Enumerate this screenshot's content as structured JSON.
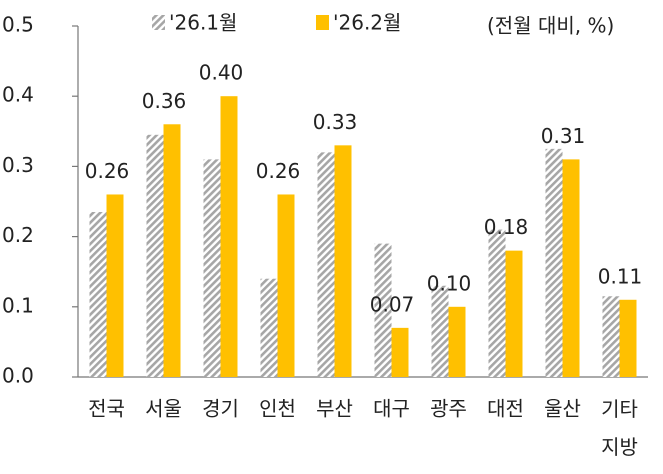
{
  "chart_data": {
    "type": "bar",
    "annotation": "(전월 대비, %)",
    "categories": [
      "전국",
      "서울",
      "경기",
      "인천",
      "부산",
      "대구",
      "광주",
      "대전",
      "울산",
      "기타 지방"
    ],
    "series": [
      {
        "name": "'26.1월",
        "color": "#a6a6a6",
        "hatch": true,
        "values": [
          0.235,
          0.345,
          0.31,
          0.14,
          0.32,
          0.19,
          0.13,
          0.21,
          0.325,
          0.115
        ]
      },
      {
        "name": "'26.2월",
        "color": "#ffc000",
        "hatch": false,
        "values": [
          0.26,
          0.36,
          0.4,
          0.26,
          0.33,
          0.07,
          0.1,
          0.18,
          0.31,
          0.11
        ],
        "value_labels": [
          "0.26",
          "0.36",
          "0.40",
          "0.26",
          "0.33",
          "0.07",
          "0.10",
          "0.18",
          "0.31",
          "0.11"
        ]
      }
    ],
    "ylim": [
      0,
      0.5
    ],
    "yticks": [
      {
        "value": 0,
        "label": "0.0"
      },
      0.1,
      0.2,
      0.3,
      0.4,
      0.5
    ],
    "grid": false
  }
}
